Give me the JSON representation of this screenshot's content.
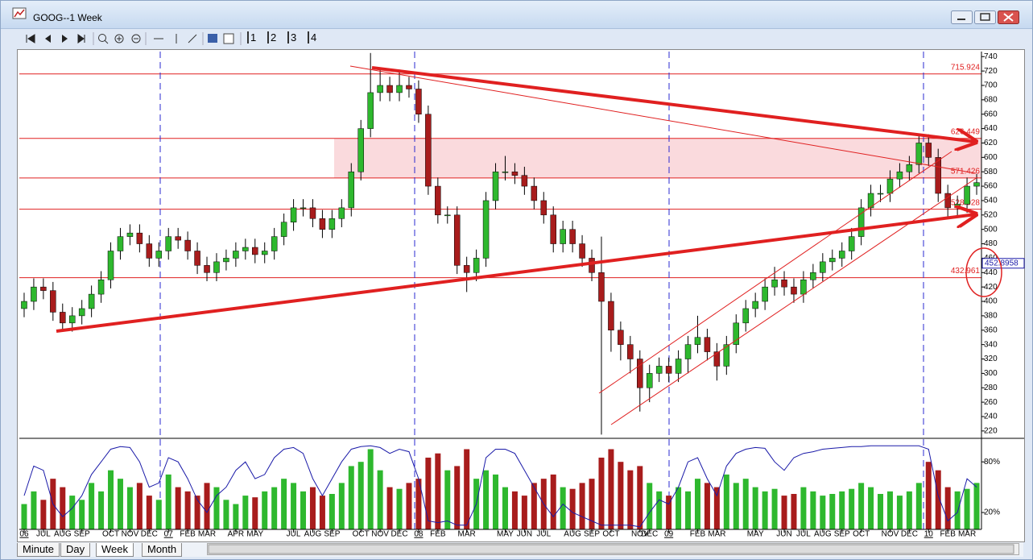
{
  "window": {
    "title": "GOOG--1 Week"
  },
  "toolbar": {
    "presets": [
      "1",
      "2",
      "3",
      "4"
    ]
  },
  "tabs": [
    "Minute",
    "Day",
    "Week",
    "Month"
  ],
  "chart_data": {
    "type": "candlestick",
    "categories": [
      "06",
      null,
      "JUL",
      null,
      "AUG",
      null,
      "SEP",
      null,
      null,
      "OCT",
      null,
      "NOV",
      null,
      "DEC",
      null,
      "07",
      null,
      "FEB",
      null,
      "MAR",
      null,
      null,
      "APR",
      null,
      "MAY",
      null,
      null,
      null,
      "JUL",
      null,
      "AUG",
      null,
      "SEP",
      null,
      null,
      "OCT",
      null,
      "NOV",
      null,
      "DEC",
      null,
      "08",
      null,
      "FEB",
      null,
      null,
      "MAR",
      null,
      null,
      null,
      "MAY",
      null,
      "JUN",
      null,
      "JUL",
      null,
      null,
      "AUG",
      null,
      "SEP",
      null,
      "OCT",
      null,
      null,
      "NOV",
      "DEC",
      null,
      "09",
      null,
      null,
      "FEB",
      null,
      "MAR",
      null,
      null,
      null,
      "MAY",
      null,
      null,
      "JUN",
      null,
      "JUL",
      null,
      "AUG",
      null,
      "SEP",
      null,
      "OCT",
      null,
      null,
      "NOV",
      null,
      "DEC",
      null,
      "10",
      null,
      "FEB",
      null,
      "MAR",
      null
    ],
    "open": [
      390,
      400,
      420,
      415,
      385,
      370,
      380,
      390,
      410,
      430,
      470,
      490,
      495,
      480,
      460,
      470,
      490,
      485,
      470,
      450,
      440,
      455,
      460,
      470,
      475,
      465,
      470,
      490,
      510,
      530,
      530,
      515,
      500,
      515,
      530,
      580,
      640,
      690,
      700,
      690,
      700,
      695,
      660,
      560,
      520,
      520,
      450,
      440,
      460,
      540,
      580,
      580,
      575,
      560,
      540,
      520,
      480,
      500,
      480,
      460,
      440,
      400,
      360,
      340,
      320,
      280,
      300,
      310,
      300,
      320,
      340,
      350,
      330,
      310,
      340,
      370,
      390,
      400,
      420,
      430,
      420,
      410,
      430,
      440,
      455,
      460,
      470,
      490,
      530,
      550,
      550,
      570,
      580,
      590,
      620,
      600,
      550,
      530,
      535,
      560
    ],
    "high": [
      412,
      432,
      432,
      427,
      397,
      392,
      402,
      422,
      442,
      482,
      502,
      507,
      507,
      492,
      482,
      502,
      502,
      497,
      482,
      462,
      467,
      472,
      482,
      487,
      487,
      482,
      502,
      522,
      542,
      542,
      542,
      527,
      527,
      542,
      592,
      652,
      745,
      722,
      712,
      722,
      712,
      707,
      672,
      572,
      532,
      532,
      462,
      472,
      552,
      592,
      602,
      592,
      587,
      572,
      552,
      532,
      512,
      512,
      492,
      472,
      490,
      412,
      372,
      352,
      332,
      312,
      322,
      322,
      332,
      352,
      380,
      362,
      342,
      352,
      382,
      402,
      412,
      432,
      448,
      442,
      432,
      442,
      452,
      467,
      472,
      482,
      502,
      542,
      562,
      562,
      582,
      592,
      602,
      632,
      632,
      612,
      562,
      547,
      572,
      577
    ],
    "low": [
      378,
      388,
      403,
      373,
      358,
      358,
      368,
      378,
      398,
      418,
      458,
      478,
      468,
      448,
      448,
      458,
      473,
      458,
      438,
      428,
      428,
      443,
      448,
      458,
      453,
      453,
      458,
      478,
      498,
      518,
      503,
      488,
      488,
      503,
      518,
      568,
      628,
      678,
      678,
      678,
      683,
      648,
      548,
      508,
      508,
      438,
      413,
      428,
      448,
      528,
      568,
      563,
      548,
      528,
      508,
      468,
      468,
      468,
      448,
      428,
      215,
      330,
      318,
      300,
      247,
      260,
      288,
      288,
      288,
      300,
      328,
      318,
      290,
      298,
      328,
      358,
      378,
      388,
      408,
      408,
      398,
      398,
      418,
      428,
      443,
      448,
      458,
      478,
      518,
      538,
      538,
      558,
      568,
      578,
      588,
      538,
      518,
      518,
      523,
      548
    ],
    "close": [
      400,
      420,
      415,
      385,
      370,
      380,
      390,
      410,
      430,
      470,
      490,
      495,
      480,
      460,
      470,
      490,
      485,
      470,
      450,
      440,
      455,
      460,
      470,
      475,
      465,
      470,
      490,
      510,
      530,
      530,
      515,
      500,
      515,
      530,
      580,
      640,
      690,
      700,
      690,
      700,
      695,
      660,
      560,
      520,
      520,
      450,
      440,
      460,
      540,
      580,
      580,
      575,
      560,
      540,
      520,
      480,
      500,
      480,
      460,
      440,
      400,
      360,
      340,
      320,
      280,
      300,
      310,
      300,
      320,
      340,
      350,
      330,
      310,
      340,
      370,
      390,
      400,
      420,
      430,
      420,
      410,
      430,
      440,
      455,
      460,
      470,
      490,
      530,
      550,
      550,
      570,
      580,
      590,
      620,
      600,
      550,
      530,
      535,
      560,
      565
    ],
    "up_color": "#2eb82e",
    "down_color": "#a81c1c",
    "ylim": [
      212,
      747
    ],
    "yticks": [
      220,
      240,
      260,
      280,
      300,
      320,
      340,
      360,
      380,
      400,
      420,
      440,
      460,
      480,
      500,
      520,
      540,
      560,
      580,
      600,
      620,
      640,
      660,
      680,
      700,
      720,
      740
    ],
    "levels": {
      "values": [
        715.924,
        626.449,
        571.426,
        528.028,
        432.961
      ],
      "color": "#e02020",
      "band_color": "#fadadd"
    },
    "last_value": 452.8958,
    "volume": {
      "values": [
        30,
        45,
        35,
        60,
        50,
        40,
        35,
        55,
        45,
        70,
        60,
        50,
        55,
        40,
        35,
        65,
        50,
        45,
        40,
        55,
        50,
        35,
        30,
        40,
        38,
        45,
        50,
        60,
        55,
        45,
        50,
        40,
        42,
        55,
        75,
        80,
        95,
        70,
        50,
        48,
        55,
        60,
        85,
        90,
        70,
        75,
        95,
        60,
        70,
        65,
        50,
        45,
        40,
        55,
        60,
        65,
        50,
        48,
        55,
        60,
        85,
        95,
        80,
        70,
        75,
        55,
        45,
        40,
        50,
        45,
        60,
        55,
        50,
        65,
        55,
        60,
        50,
        45,
        48,
        40,
        42,
        50,
        45,
        40,
        42,
        45,
        48,
        55,
        50,
        42,
        45,
        40,
        45,
        55,
        80,
        70,
        50,
        45,
        48,
        55
      ],
      "ylim": [
        0,
        105
      ],
      "yticks": [
        {
          "value": 20,
          "label": "20%"
        },
        {
          "value": 80,
          "label": "80%"
        }
      ]
    },
    "oscillator": {
      "color": "#1a1aa8",
      "values": [
        40,
        75,
        70,
        30,
        15,
        25,
        40,
        65,
        80,
        95,
        98,
        97,
        80,
        50,
        55,
        85,
        80,
        60,
        35,
        20,
        40,
        50,
        70,
        80,
        60,
        65,
        85,
        95,
        97,
        90,
        60,
        40,
        60,
        80,
        95,
        98,
        99,
        97,
        90,
        95,
        92,
        60,
        10,
        8,
        10,
        5,
        5,
        30,
        85,
        95,
        95,
        90,
        70,
        50,
        30,
        15,
        30,
        20,
        15,
        10,
        5,
        5,
        5,
        5,
        3,
        20,
        35,
        30,
        50,
        80,
        85,
        60,
        40,
        75,
        90,
        95,
        97,
        96,
        80,
        70,
        85,
        90,
        92,
        95,
        96,
        97,
        98,
        98,
        99,
        99,
        99,
        99,
        99,
        99,
        95,
        40,
        10,
        20,
        60,
        50
      ]
    }
  }
}
